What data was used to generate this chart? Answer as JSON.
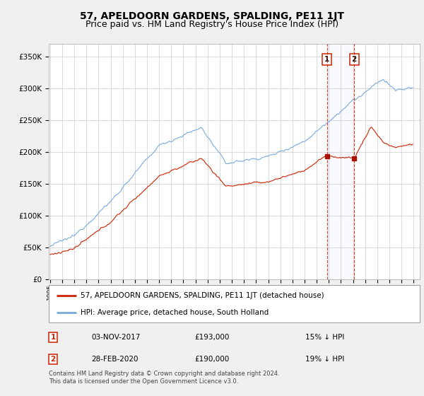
{
  "title": "57, APELDOORN GARDENS, SPALDING, PE11 1JT",
  "subtitle": "Price paid vs. HM Land Registry's House Price Index (HPI)",
  "title_fontsize": 10,
  "subtitle_fontsize": 9,
  "hpi_color": "#7aaadd",
  "price_color": "#cc2200",
  "marker_color": "#aa1100",
  "annotation_color": "#cc2200",
  "background_color": "#f0f0f0",
  "plot_bg": "#ffffff",
  "ylim": [
    0,
    370000
  ],
  "yticks": [
    0,
    50000,
    100000,
    150000,
    200000,
    250000,
    300000,
    350000
  ],
  "ytick_labels": [
    "£0",
    "£50K",
    "£100K",
    "£150K",
    "£200K",
    "£250K",
    "£300K",
    "£350K"
  ],
  "legend_line1": "57, APELDOORN GARDENS, SPALDING, PE11 1JT (detached house)",
  "legend_line2": "HPI: Average price, detached house, South Holland",
  "footer1": "Contains HM Land Registry data © Crown copyright and database right 2024.",
  "footer2": "This data is licensed under the Open Government Licence v3.0.",
  "t1_year_float": 2017.836,
  "t1_price": 193000,
  "t1_date": "03-NOV-2017",
  "t1_pct": "15%",
  "t2_year_float": 2020.083,
  "t2_price": 190000,
  "t2_date": "28-FEB-2020",
  "t2_pct": "19%"
}
